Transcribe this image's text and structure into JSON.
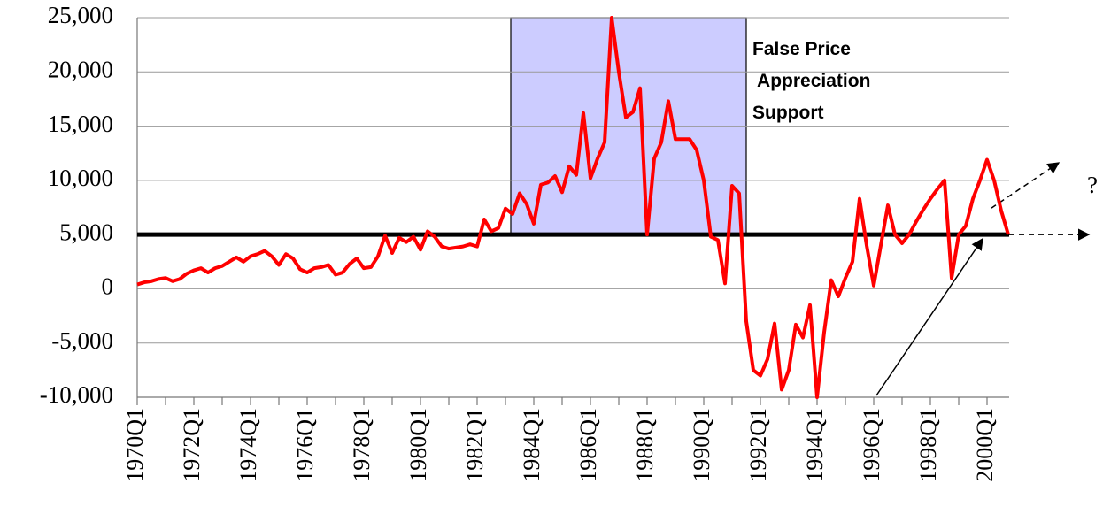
{
  "chart_data": {
    "type": "line",
    "categories": [
      "1970Q1",
      null,
      null,
      null,
      null,
      null,
      null,
      null,
      "1972Q1",
      null,
      null,
      null,
      null,
      null,
      null,
      null,
      "1974Q1",
      null,
      null,
      null,
      null,
      null,
      null,
      null,
      "1976Q1",
      null,
      null,
      null,
      null,
      null,
      null,
      null,
      "1978Q1",
      null,
      null,
      null,
      null,
      null,
      null,
      null,
      "1980Q1",
      null,
      null,
      null,
      null,
      null,
      null,
      null,
      "1982Q1",
      null,
      null,
      null,
      null,
      null,
      null,
      null,
      "1984Q1",
      null,
      null,
      null,
      null,
      null,
      null,
      null,
      "1986Q1",
      null,
      null,
      null,
      null,
      null,
      null,
      null,
      "1988Q1",
      null,
      null,
      null,
      null,
      null,
      null,
      null,
      "1990Q1",
      null,
      null,
      null,
      null,
      null,
      null,
      null,
      "1992Q1",
      null,
      null,
      null,
      null,
      null,
      null,
      null,
      "1994Q1",
      null,
      null,
      null,
      null,
      null,
      null,
      null,
      "1996Q1",
      null,
      null,
      null,
      null,
      null,
      null,
      null,
      "1998Q1",
      null,
      null,
      null,
      null,
      null,
      null,
      null,
      "2000Q1",
      null,
      null,
      null
    ],
    "series": [
      {
        "color": "#ff0000",
        "values": [
          400,
          600,
          700,
          900,
          1000,
          700,
          900,
          1400,
          1700,
          1900,
          1500,
          1900,
          2100,
          2500,
          2900,
          2500,
          3000,
          3200,
          3500,
          3000,
          2200,
          3200,
          2800,
          1800,
          1500,
          1900,
          2000,
          2200,
          1300,
          1500,
          2300,
          2800,
          1900,
          2000,
          3000,
          4900,
          3300,
          4700,
          4300,
          4800,
          3600,
          5300,
          4800,
          3900,
          3700,
          3800,
          3900,
          4100,
          3900,
          6400,
          5300,
          5600,
          7400,
          6900,
          8800,
          7800,
          6000,
          9600,
          9800,
          10400,
          8900,
          11300,
          10500,
          16200,
          10200,
          12000,
          13500,
          25000,
          20000,
          15800,
          16300,
          18500,
          5000,
          12000,
          13500,
          17300,
          13800,
          13800,
          13800,
          12800,
          10000,
          4800,
          4500,
          500,
          9500,
          8800,
          -3000,
          -7500,
          -8000,
          -6500,
          -3200,
          -9300,
          -7500,
          -3300,
          -4500,
          -1500,
          -10000,
          -4000,
          800,
          -700,
          1000,
          2500,
          8300,
          4000,
          300,
          4000,
          7700,
          5000,
          4200,
          5000,
          6200,
          7300,
          8300,
          9200,
          10000,
          1000,
          5000,
          5800,
          8300,
          10000,
          11900,
          10000,
          7200,
          5000
        ]
      }
    ],
    "ylim": [
      -10000,
      25000
    ],
    "yticks": [
      {
        "value": -10000,
        "label": "-10,000"
      },
      {
        "value": -5000,
        "label": "-5,000"
      },
      0,
      {
        "value": 5000,
        "label": "5,000"
      },
      {
        "value": 10000,
        "label": "10,000"
      },
      {
        "value": 15000,
        "label": "15,000"
      },
      {
        "value": 20000,
        "label": "20,000"
      },
      {
        "value": 25000,
        "label": "25,000"
      }
    ],
    "grid": true,
    "reference_line": {
      "value": 5000,
      "color": "#000000"
    },
    "highlight": {
      "x_range": [
        52.75,
        86
      ],
      "ylim": [
        5000,
        25000
      ],
      "color": "#ccccff"
    },
    "annotation": [
      "False Price",
      " Appreciation",
      "Support"
    ],
    "question_mark": "?"
  }
}
